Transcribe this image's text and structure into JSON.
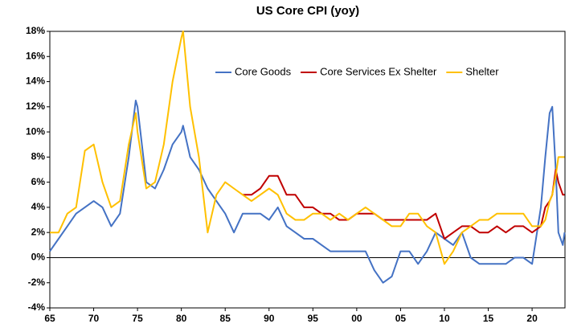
{
  "chart_data": {
    "type": "line",
    "title": "US Core CPI (yoy)",
    "x": [
      1965,
      1966,
      1967,
      1968,
      1969,
      1970,
      1971,
      1972,
      1973,
      1974,
      1974.8,
      1975,
      1976,
      1977,
      1978,
      1979,
      1980,
      1980.2,
      1981,
      1982,
      1983,
      1984,
      1985,
      1986,
      1987,
      1988,
      1989,
      1990,
      1991,
      1992,
      1993,
      1994,
      1995,
      1996,
      1997,
      1998,
      1999,
      2000,
      2001,
      2002,
      2003,
      2004,
      2005,
      2006,
      2007,
      2008,
      2009,
      2010,
      2011,
      2012,
      2013,
      2014,
      2015,
      2016,
      2017,
      2018,
      2019,
      2020,
      2021,
      2021.5,
      2022,
      2022.3,
      2022.7,
      2023,
      2023.5,
      2023.7
    ],
    "series": [
      {
        "name": "Core Goods",
        "color": "#4472c4",
        "values": [
          0.5,
          1.5,
          2.5,
          3.5,
          4,
          4.5,
          4,
          2.5,
          3.5,
          8,
          12.5,
          12,
          6,
          5.5,
          7,
          9,
          10,
          10.5,
          8,
          7,
          5.5,
          4.5,
          3.5,
          2,
          3.5,
          3.5,
          3.5,
          3,
          4,
          2.5,
          2,
          1.5,
          1.5,
          1,
          0.5,
          0.5,
          0.5,
          0.5,
          0.5,
          -1,
          -2,
          -1.5,
          0.5,
          0.5,
          -0.5,
          0.5,
          2,
          1.5,
          1,
          2,
          0,
          -0.5,
          -0.5,
          -0.5,
          -0.5,
          0,
          0,
          -0.5,
          4,
          8,
          11.5,
          12,
          7,
          2,
          1,
          2
        ]
      },
      {
        "name": "Core Services Ex Shelter",
        "color": "#c00000",
        "values": [
          null,
          null,
          null,
          null,
          null,
          null,
          null,
          null,
          null,
          null,
          null,
          null,
          null,
          null,
          null,
          null,
          null,
          null,
          null,
          null,
          null,
          null,
          null,
          null,
          5,
          5,
          5.5,
          6.5,
          6.5,
          5,
          5,
          4,
          4,
          3.5,
          3.5,
          3,
          3,
          3.5,
          3.5,
          3.5,
          3,
          3,
          3,
          3,
          3,
          3,
          3.5,
          1.5,
          2,
          2.5,
          2.5,
          2,
          2,
          2.5,
          2,
          2.5,
          2.5,
          2,
          2.5,
          4,
          4.5,
          5,
          7,
          6,
          5,
          5
        ]
      },
      {
        "name": "Shelter",
        "color": "#ffc000",
        "values": [
          2,
          2,
          3.5,
          4,
          8.5,
          9,
          6,
          4,
          4.5,
          9,
          11.5,
          10,
          5.5,
          6,
          9,
          14,
          17.5,
          18,
          12,
          8,
          2,
          5,
          6,
          5.5,
          5,
          4.5,
          5,
          5.5,
          5,
          3.5,
          3,
          3,
          3.5,
          3.5,
          3,
          3.5,
          3,
          3.5,
          4,
          3.5,
          3,
          2.5,
          2.5,
          3.5,
          3.5,
          2.5,
          2,
          -0.5,
          0.5,
          2,
          2.5,
          3,
          3,
          3.5,
          3.5,
          3.5,
          3.5,
          2.5,
          2.5,
          3,
          4.5,
          5,
          6.5,
          8,
          8,
          8
        ]
      }
    ],
    "xlim": [
      1965,
      2023.75
    ],
    "xticks": [
      {
        "value": 1965,
        "label": "65"
      },
      {
        "value": 1970,
        "label": "70"
      },
      {
        "value": 1975,
        "label": "75"
      },
      {
        "value": 1980,
        "label": "80"
      },
      {
        "value": 1985,
        "label": "85"
      },
      {
        "value": 1990,
        "label": "90"
      },
      {
        "value": 1995,
        "label": "95"
      },
      {
        "value": 2000,
        "label": "00"
      },
      {
        "value": 2005,
        "label": "05"
      },
      {
        "value": 2010,
        "label": "10"
      },
      {
        "value": 2015,
        "label": "15"
      },
      {
        "value": 2020,
        "label": "20"
      }
    ],
    "ylim": [
      -4,
      18
    ],
    "yticks": [
      {
        "value": -4,
        "label": "-4%"
      },
      {
        "value": -2,
        "label": "-2%"
      },
      {
        "value": 0,
        "label": "0%"
      },
      {
        "value": 2,
        "label": "2%"
      },
      {
        "value": 4,
        "label": "4%"
      },
      {
        "value": 6,
        "label": "6%"
      },
      {
        "value": 8,
        "label": "8%"
      },
      {
        "value": 10,
        "label": "10%"
      },
      {
        "value": 12,
        "label": "12%"
      },
      {
        "value": 14,
        "label": "14%"
      },
      {
        "value": 16,
        "label": "16%"
      },
      {
        "value": 18,
        "label": "18%"
      }
    ],
    "legend": "top-right"
  }
}
